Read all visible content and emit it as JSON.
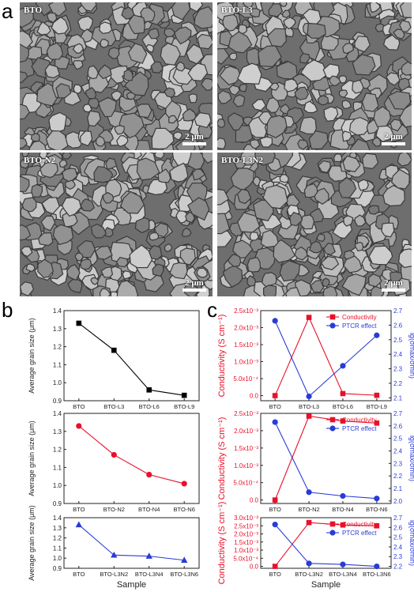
{
  "panels": {
    "a": "a",
    "b": "b",
    "c": "c"
  },
  "sem_images": [
    {
      "label": "BTO",
      "scalebar": "2 μm"
    },
    {
      "label": "BTO-L3",
      "scalebar": "2 μm"
    },
    {
      "label": "BTO-N2",
      "scalebar": "2 μm"
    },
    {
      "label": "BTO-L3N2",
      "scalebar": "2 μm"
    }
  ],
  "colors": {
    "black": "#000000",
    "red": "#e8102a",
    "blue": "#2a3bd6"
  },
  "chart_data": [
    {
      "type": "line",
      "categories": [
        "BTO",
        "BTO-L3",
        "BTO-L6",
        "BTO-L9"
      ],
      "series": [
        {
          "values": [
            1.33,
            1.18,
            0.96,
            0.93
          ],
          "color": "#000000",
          "marker": "square"
        }
      ],
      "ylabel": "Average grain size (μm)",
      "xlabel": "",
      "ylim": [
        0.9,
        1.4
      ],
      "yticks": [
        "0.9",
        "1.0",
        "1.1",
        "1.2",
        "1.3",
        "1.4"
      ]
    },
    {
      "type": "line",
      "categories": [
        "BTO",
        "BTO-N2",
        "BTO-N4",
        "BTO-N6"
      ],
      "series": [
        {
          "values": [
            1.33,
            1.17,
            1.06,
            1.01
          ],
          "color": "#e8102a",
          "marker": "circle"
        }
      ],
      "ylabel": "Average grain size (μm)",
      "xlabel": "",
      "ylim": [
        0.9,
        1.4
      ],
      "yticks": [
        "0.9",
        "1.0",
        "1.1",
        "1.2",
        "1.3",
        "1.4"
      ]
    },
    {
      "type": "line",
      "categories": [
        "BTO",
        "BTO-L3N2",
        "BTO-L3N4",
        "BTO-L3N6"
      ],
      "series": [
        {
          "values": [
            1.33,
            1.03,
            1.02,
            0.98
          ],
          "color": "#2a3bd6",
          "marker": "triangle"
        }
      ],
      "ylabel": "Average grain size (μm)",
      "xlabel": "Sample",
      "ylim": [
        0.9,
        1.4
      ],
      "yticks": [
        "0.9",
        "1.0",
        "1.1",
        "1.2",
        "1.3",
        "1.4"
      ]
    },
    {
      "type": "line",
      "categories": [
        "BTO",
        "BTO-L3",
        "BTO-L6",
        "BTO-L9"
      ],
      "series": [
        {
          "name": "Conductivity",
          "axis": "left",
          "values": [
            0.0,
            0.0023,
            6e-05,
            1e-05
          ],
          "color": "#e8102a",
          "marker": "square"
        },
        {
          "name": "PTCR effect",
          "axis": "right",
          "values": [
            2.63,
            2.11,
            2.32,
            2.53
          ],
          "color": "#2a3bd6",
          "marker": "circle"
        }
      ],
      "ylabel": "Conductivity (S cm⁻¹)",
      "y2label": "lg(σmax/σmin)",
      "xlabel": "",
      "ylim": [
        -0.00015,
        0.0025
      ],
      "yticks": [
        "0.0",
        "5.0x10⁻⁴",
        "1.0x10⁻³",
        "1.5x10⁻³",
        "2.0x10⁻³",
        "2.5x10⁻³"
      ],
      "y2lim": [
        2.08,
        2.7
      ],
      "y2ticks": [
        "2.1",
        "2.2",
        "2.3",
        "2.4",
        "2.5",
        "2.6",
        "2.7"
      ],
      "legend": "top-right"
    },
    {
      "type": "line",
      "categories": [
        "BTO",
        "BTO-N2",
        "BTO-N4",
        "BTO-N6"
      ],
      "series": [
        {
          "name": "Conductivity",
          "axis": "left",
          "values": [
            0.0,
            0.00242,
            0.00228,
            0.00222
          ],
          "color": "#e8102a",
          "marker": "square"
        },
        {
          "name": "PTCR effect",
          "axis": "right",
          "values": [
            2.63,
            2.07,
            2.04,
            2.02
          ],
          "color": "#2a3bd6",
          "marker": "circle"
        }
      ],
      "ylabel": "Conductivity (S cm⁻¹)",
      "y2label": "lg(σmax/σmin)",
      "xlabel": "",
      "ylim": [
        -0.0001,
        0.0025
      ],
      "yticks": [
        "0.0",
        "5.0x10⁻⁴",
        "1.0x10⁻³",
        "1.5x10⁻³",
        "2.0x10⁻³",
        "2.5x10⁻³"
      ],
      "y2lim": [
        1.98,
        2.7
      ],
      "y2ticks": [
        "2.0",
        "2.1",
        "2.2",
        "2.3",
        "2.4",
        "2.5",
        "2.6",
        "2.7"
      ],
      "legend": "top-right"
    },
    {
      "type": "line",
      "categories": [
        "BTO",
        "BTO-L3N2",
        "BTO-L3N4",
        "BTO-L3N6"
      ],
      "series": [
        {
          "name": "Conductivity",
          "axis": "left",
          "values": [
            0.0,
            0.0027,
            0.00255,
            0.0025
          ],
          "color": "#e8102a",
          "marker": "square"
        },
        {
          "name": "PTCR effect",
          "axis": "right",
          "values": [
            2.63,
            2.23,
            2.22,
            2.2
          ],
          "color": "#2a3bd6",
          "marker": "circle"
        }
      ],
      "ylabel": "Conductivity (S cm⁻¹)",
      "y2label": "lg(σmax/σmin)",
      "xlabel": "Sample",
      "ylim": [
        -0.00012,
        0.003
      ],
      "yticks": [
        "0.0",
        "5.0x10⁻⁴",
        "1.0x10⁻³",
        "1.5x10⁻³",
        "2.0x10⁻³",
        "2.5x10⁻³",
        "3.0x10⁻³"
      ],
      "y2lim": [
        2.18,
        2.7
      ],
      "y2ticks": [
        "2.2",
        "2.3",
        "2.4",
        "2.5",
        "2.6",
        "2.7"
      ],
      "legend": "top-right"
    }
  ]
}
